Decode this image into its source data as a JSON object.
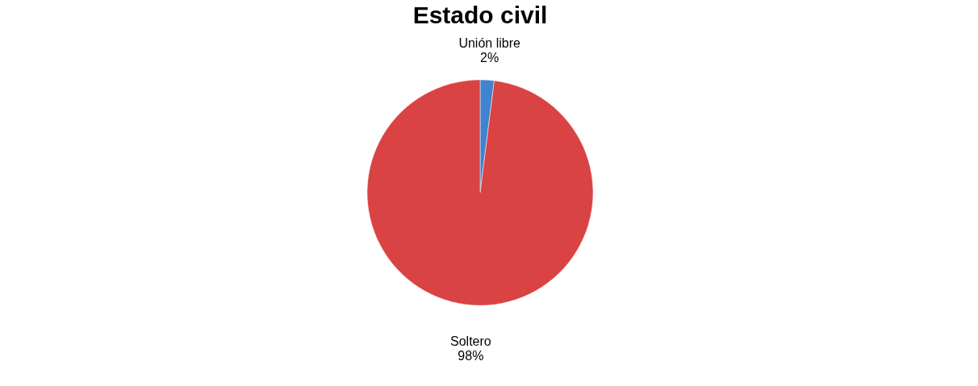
{
  "chart_data": {
    "type": "pie",
    "title": "Estado civil",
    "categories": [
      "Unión libre",
      "Soltero"
    ],
    "values": [
      2,
      98
    ],
    "value_labels": [
      "2%",
      "98%"
    ],
    "colors": [
      "#3f83d1",
      "#d94343"
    ],
    "legend": false
  }
}
